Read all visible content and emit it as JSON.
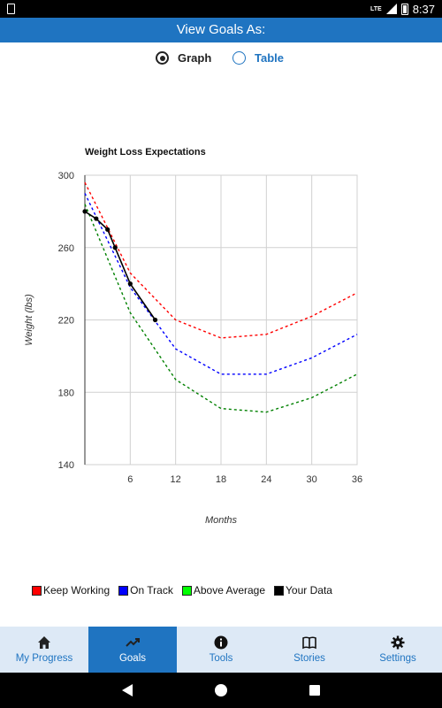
{
  "status_bar": {
    "network": "LTE",
    "time": "8:37"
  },
  "header": {
    "title": "View Goals As:"
  },
  "view_toggle": {
    "options": [
      {
        "label": "Graph",
        "selected": true
      },
      {
        "label": "Table",
        "selected": false
      }
    ]
  },
  "chart_data": {
    "type": "line",
    "title": "Weight Loss Expectations",
    "xlabel": "Months",
    "ylabel": "Weight (lbs)",
    "xlim": [
      0,
      36
    ],
    "ylim": [
      140,
      300
    ],
    "x_ticks": [
      6,
      12,
      18,
      24,
      30,
      36
    ],
    "y_ticks": [
      140,
      180,
      220,
      260,
      300
    ],
    "grid": true,
    "series": [
      {
        "name": "Keep Working",
        "color": "#ff0000",
        "style": "dashed",
        "x": [
          0,
          6,
          12,
          18,
          24,
          30,
          36
        ],
        "y": [
          296,
          246,
          220,
          210,
          212,
          222,
          235
        ]
      },
      {
        "name": "On Track",
        "color": "#0000ff",
        "style": "dashed",
        "x": [
          0,
          6,
          12,
          18,
          24,
          30,
          36
        ],
        "y": [
          290,
          238,
          204,
          190,
          190,
          199,
          212
        ]
      },
      {
        "name": "Above Average",
        "color": "#008000",
        "style": "dashed",
        "x": [
          0,
          6,
          12,
          18,
          24,
          30,
          36
        ],
        "y": [
          284,
          224,
          187,
          171,
          169,
          177,
          190
        ]
      },
      {
        "name": "Your Data",
        "color": "#000000",
        "style": "solid",
        "markers": true,
        "x": [
          0,
          1.5,
          3,
          4,
          6,
          9.3
        ],
        "y": [
          280,
          276,
          270,
          260,
          240,
          220
        ]
      }
    ]
  },
  "legend": {
    "items": [
      {
        "label": "Keep Working",
        "color": "#ff0000"
      },
      {
        "label": "On Track",
        "color": "#0000ff"
      },
      {
        "label": "Above Average",
        "color": "#00ff00"
      },
      {
        "label": "Your Data",
        "color": "#000000"
      }
    ]
  },
  "tabs": [
    {
      "label": "My Progress",
      "icon": "home-icon",
      "active": false
    },
    {
      "label": "Goals",
      "icon": "trending-icon",
      "active": true
    },
    {
      "label": "Tools",
      "icon": "info-icon",
      "active": false
    },
    {
      "label": "Stories",
      "icon": "book-icon",
      "active": false
    },
    {
      "label": "Settings",
      "icon": "gear-icon",
      "active": false
    }
  ]
}
